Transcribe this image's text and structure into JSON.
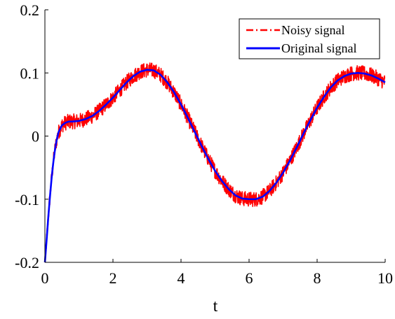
{
  "chart_data": {
    "type": "line",
    "title": "",
    "xlabel": "t",
    "ylabel": "",
    "xlim": [
      0,
      10
    ],
    "ylim": [
      -0.2,
      0.2
    ],
    "xticks": [
      0,
      2,
      4,
      6,
      8,
      10
    ],
    "xtick_labels": [
      "0",
      "2",
      "4",
      "6",
      "8",
      "10"
    ],
    "yticks": [
      -0.2,
      -0.1,
      0,
      0.1,
      0.2
    ],
    "ytick_labels": [
      "-0.2",
      "-0.1",
      "0",
      "0.1",
      "0.2"
    ],
    "grid": false,
    "legend_position": "top-right",
    "noise_amplitude": 0.012,
    "series": [
      {
        "name": "Noisy signal",
        "color": "#ff0000",
        "line_style": "dash-dot",
        "x": [
          0,
          0.05,
          0.1,
          0.15,
          0.2,
          0.25,
          0.3,
          0.35,
          0.4,
          0.5,
          0.6,
          0.7,
          0.8,
          1.0,
          1.2,
          1.4,
          1.6,
          1.8,
          2.0,
          2.2,
          2.4,
          2.6,
          2.8,
          3.0,
          3.2,
          3.4,
          3.6,
          3.8,
          4.0,
          4.2,
          4.4,
          4.6,
          4.8,
          5.0,
          5.2,
          5.4,
          5.6,
          5.8,
          6.0,
          6.2,
          6.4,
          6.6,
          6.8,
          7.0,
          7.2,
          7.4,
          7.6,
          7.8,
          8.0,
          8.2,
          8.4,
          8.6,
          8.8,
          9.0,
          9.2,
          9.4,
          9.6,
          9.8,
          10.0
        ],
        "y": [
          -0.2,
          -0.165,
          -0.128,
          -0.095,
          -0.065,
          -0.04,
          -0.02,
          -0.005,
          0.006,
          0.017,
          0.021,
          0.023,
          0.023,
          0.024,
          0.027,
          0.032,
          0.04,
          0.05,
          0.061,
          0.073,
          0.085,
          0.095,
          0.102,
          0.105,
          0.104,
          0.097,
          0.085,
          0.069,
          0.05,
          0.029,
          0.007,
          -0.015,
          -0.036,
          -0.055,
          -0.071,
          -0.084,
          -0.094,
          -0.099,
          -0.1,
          -0.1,
          -0.096,
          -0.087,
          -0.074,
          -0.058,
          -0.039,
          -0.018,
          0.004,
          0.025,
          0.045,
          0.062,
          0.077,
          0.088,
          0.095,
          0.099,
          0.1,
          0.099,
          0.096,
          0.091,
          0.085
        ]
      },
      {
        "name": "Original signal",
        "color": "#0000ff",
        "line_style": "solid",
        "x": [
          0,
          0.05,
          0.1,
          0.15,
          0.2,
          0.25,
          0.3,
          0.35,
          0.4,
          0.5,
          0.6,
          0.7,
          0.8,
          1.0,
          1.2,
          1.4,
          1.6,
          1.8,
          2.0,
          2.2,
          2.4,
          2.6,
          2.8,
          3.0,
          3.2,
          3.4,
          3.6,
          3.8,
          4.0,
          4.2,
          4.4,
          4.6,
          4.8,
          5.0,
          5.2,
          5.4,
          5.6,
          5.8,
          6.0,
          6.2,
          6.4,
          6.6,
          6.8,
          7.0,
          7.2,
          7.4,
          7.6,
          7.8,
          8.0,
          8.2,
          8.4,
          8.6,
          8.8,
          9.0,
          9.2,
          9.4,
          9.6,
          9.8,
          10.0
        ],
        "y": [
          -0.2,
          -0.165,
          -0.128,
          -0.095,
          -0.065,
          -0.04,
          -0.02,
          -0.005,
          0.006,
          0.017,
          0.021,
          0.023,
          0.023,
          0.024,
          0.027,
          0.032,
          0.04,
          0.05,
          0.061,
          0.073,
          0.085,
          0.095,
          0.102,
          0.105,
          0.104,
          0.097,
          0.085,
          0.069,
          0.05,
          0.029,
          0.007,
          -0.015,
          -0.036,
          -0.055,
          -0.071,
          -0.084,
          -0.094,
          -0.099,
          -0.1,
          -0.1,
          -0.096,
          -0.087,
          -0.074,
          -0.058,
          -0.039,
          -0.018,
          0.004,
          0.025,
          0.045,
          0.062,
          0.077,
          0.088,
          0.095,
          0.099,
          0.1,
          0.099,
          0.096,
          0.091,
          0.085
        ]
      }
    ]
  }
}
